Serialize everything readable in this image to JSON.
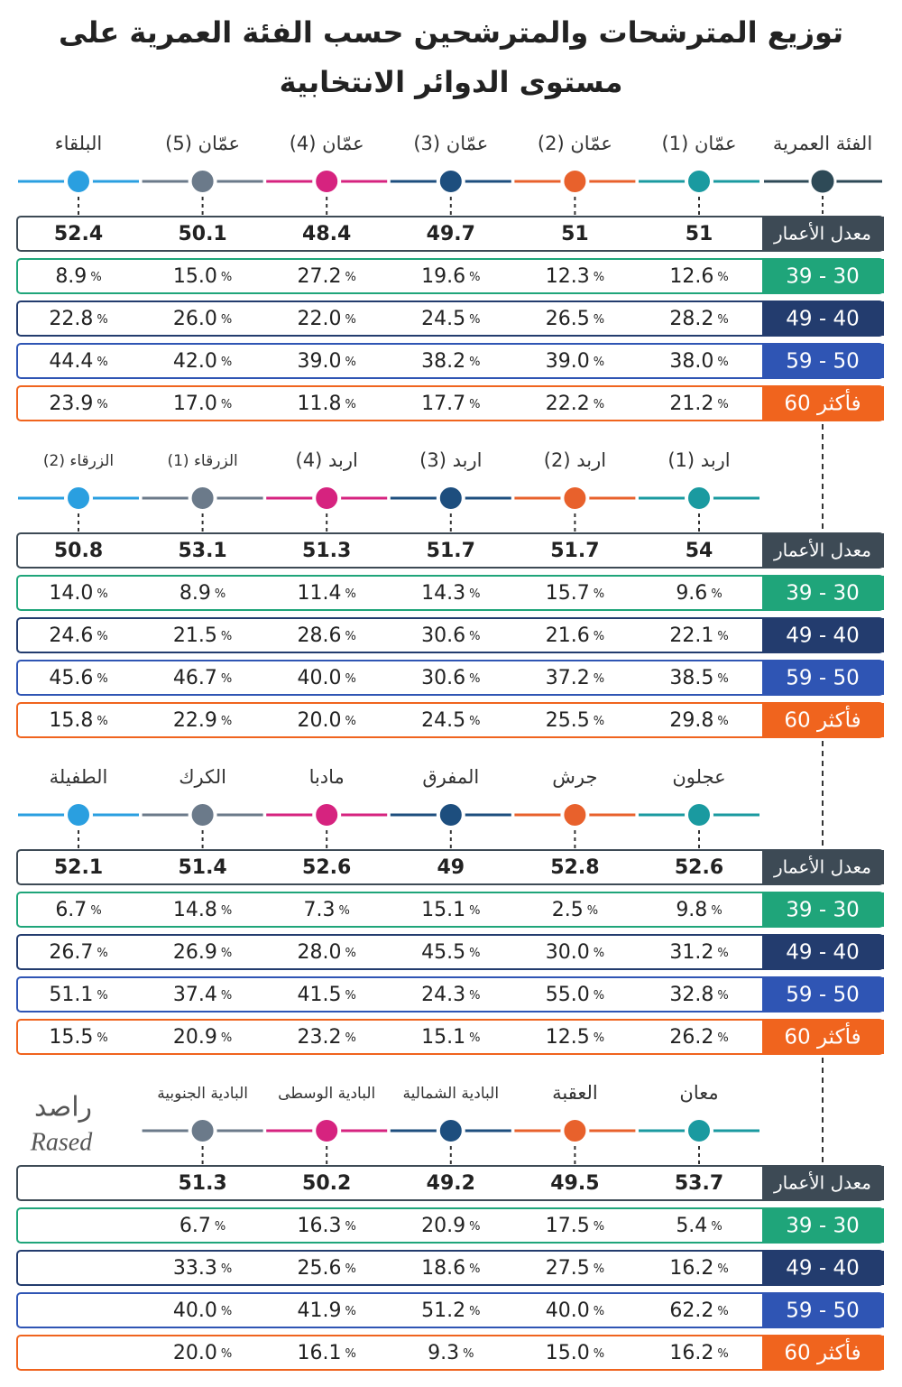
{
  "title_lines": [
    "توزيع المترشحات والمترشحين حسب الفئة العمرية على",
    "مستوى الدوائر الانتخابية"
  ],
  "header_label": "الفئة العمرية",
  "row_labels": [
    "معدل الأعمار",
    "39 - 30",
    "49 - 40",
    "59 - 50",
    "60 فأكثر"
  ],
  "unit": "%",
  "blocks": [
    {
      "districts": [
        {
          "name": "عمّان (1)",
          "values": [
            "51",
            "12.6",
            "28.2",
            "38.0",
            "21.2"
          ]
        },
        {
          "name": "عمّان (2)",
          "values": [
            "51",
            "12.3",
            "26.5",
            "39.0",
            "22.2"
          ]
        },
        {
          "name": "عمّان (3)",
          "values": [
            "49.7",
            "19.6",
            "24.5",
            "38.2",
            "17.7"
          ]
        },
        {
          "name": "عمّان (4)",
          "values": [
            "48.4",
            "27.2",
            "22.0",
            "39.0",
            "11.8"
          ]
        },
        {
          "name": "عمّان (5)",
          "values": [
            "50.1",
            "15.0",
            "26.0",
            "42.0",
            "17.0"
          ]
        },
        {
          "name": "البلقاء",
          "values": [
            "52.4",
            "8.9",
            "22.8",
            "44.4",
            "23.9"
          ]
        }
      ]
    },
    {
      "districts": [
        {
          "name": "اربد (1)",
          "values": [
            "54",
            "9.6",
            "22.1",
            "38.5",
            "29.8"
          ]
        },
        {
          "name": "اربد (2)",
          "values": [
            "51.7",
            "15.7",
            "21.6",
            "37.2",
            "25.5"
          ]
        },
        {
          "name": "اربد (3)",
          "values": [
            "51.7",
            "14.3",
            "30.6",
            "30.6",
            "24.5"
          ]
        },
        {
          "name": "اربد (4)",
          "values": [
            "51.3",
            "11.4",
            "28.6",
            "40.0",
            "20.0"
          ]
        },
        {
          "name": "الزرقاء (1)",
          "values": [
            "53.1",
            "8.9",
            "21.5",
            "46.7",
            "22.9"
          ]
        },
        {
          "name": "الزرقاء (2)",
          "values": [
            "50.8",
            "14.0",
            "24.6",
            "45.6",
            "15.8"
          ]
        }
      ]
    },
    {
      "districts": [
        {
          "name": "عجلون",
          "values": [
            "52.6",
            "9.8",
            "31.2",
            "32.8",
            "26.2"
          ]
        },
        {
          "name": "جرش",
          "values": [
            "52.8",
            "2.5",
            "30.0",
            "55.0",
            "12.5"
          ]
        },
        {
          "name": "المفرق",
          "values": [
            "49",
            "15.1",
            "45.5",
            "24.3",
            "15.1"
          ]
        },
        {
          "name": "مادبا",
          "values": [
            "52.6",
            "7.3",
            "28.0",
            "41.5",
            "23.2"
          ]
        },
        {
          "name": "الكرك",
          "values": [
            "51.4",
            "14.8",
            "26.9",
            "37.4",
            "20.9"
          ]
        },
        {
          "name": "الطفيلة",
          "values": [
            "52.1",
            "6.7",
            "26.7",
            "51.1",
            "15.5"
          ]
        }
      ]
    },
    {
      "districts": [
        {
          "name": "معان",
          "values": [
            "53.7",
            "5.4",
            "16.2",
            "62.2",
            "16.2"
          ]
        },
        {
          "name": "العقبة",
          "values": [
            "49.5",
            "17.5",
            "27.5",
            "40.0",
            "15.0"
          ]
        },
        {
          "name": "البادية الشمالية",
          "values": [
            "49.2",
            "20.9",
            "18.6",
            "51.2",
            "9.3"
          ]
        },
        {
          "name": "البادية الوسطى",
          "values": [
            "50.2",
            "16.3",
            "25.6",
            "41.9",
            "16.1"
          ]
        },
        {
          "name": "البادية الجنوبية",
          "values": [
            "51.3",
            "6.7",
            "33.3",
            "40.0",
            "20.0"
          ]
        }
      ]
    }
  ],
  "logo": {
    "arabic": "راصد",
    "latin": "Rased"
  }
}
